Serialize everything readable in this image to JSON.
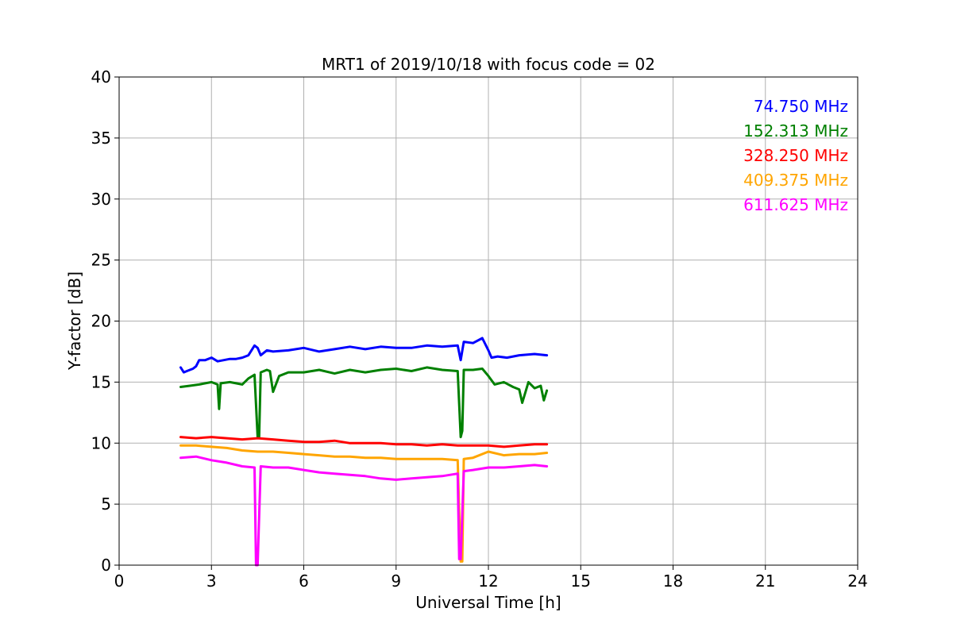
{
  "chart_data": {
    "type": "line",
    "title": "MRT1 of 2019/10/18 with focus code = 02",
    "xlabel": "Universal Time [h]",
    "ylabel": "Y-factor [dB]",
    "xlim": [
      0,
      24
    ],
    "ylim": [
      0,
      40
    ],
    "xticks": [
      0,
      3,
      6,
      9,
      12,
      15,
      18,
      21,
      24
    ],
    "yticks": [
      0,
      5,
      10,
      15,
      20,
      25,
      30,
      35,
      40
    ],
    "grid": true,
    "legend_position": "top-right",
    "series": [
      {
        "name": "74.750 MHz",
        "color": "#0000ff",
        "x": [
          2.0,
          2.1,
          2.2,
          2.3,
          2.4,
          2.5,
          2.6,
          2.8,
          3.0,
          3.2,
          3.4,
          3.6,
          3.8,
          4.0,
          4.2,
          4.4,
          4.5,
          4.6,
          4.8,
          5.0,
          5.5,
          6.0,
          6.5,
          7.0,
          7.5,
          8.0,
          8.5,
          9.0,
          9.5,
          10.0,
          10.5,
          11.0,
          11.1,
          11.2,
          11.5,
          11.8,
          12.0,
          12.1,
          12.3,
          12.6,
          13.0,
          13.5,
          13.9
        ],
        "y": [
          16.2,
          15.8,
          15.9,
          16.0,
          16.1,
          16.3,
          16.8,
          16.8,
          17.0,
          16.7,
          16.8,
          16.9,
          16.9,
          17.0,
          17.2,
          18.0,
          17.8,
          17.2,
          17.6,
          17.5,
          17.6,
          17.8,
          17.5,
          17.7,
          17.9,
          17.7,
          17.9,
          17.8,
          17.8,
          18.0,
          17.9,
          18.0,
          16.8,
          18.3,
          18.2,
          18.6,
          17.6,
          17.0,
          17.1,
          17.0,
          17.2,
          17.3,
          17.2
        ]
      },
      {
        "name": "152.313 MHz",
        "color": "#008000",
        "x": [
          2.0,
          2.3,
          2.6,
          3.0,
          3.2,
          3.25,
          3.3,
          3.6,
          4.0,
          4.2,
          4.4,
          4.5,
          4.55,
          4.6,
          4.8,
          4.9,
          5.0,
          5.2,
          5.5,
          6.0,
          6.5,
          7.0,
          7.5,
          8.0,
          8.5,
          9.0,
          9.5,
          10.0,
          10.5,
          11.0,
          11.1,
          11.15,
          11.2,
          11.5,
          11.8,
          12.0,
          12.2,
          12.5,
          12.8,
          13.0,
          13.1,
          13.3,
          13.5,
          13.7,
          13.8,
          13.9
        ],
        "y": [
          14.6,
          14.7,
          14.8,
          15.0,
          14.8,
          12.8,
          14.9,
          15.0,
          14.8,
          15.3,
          15.6,
          10.5,
          10.5,
          15.8,
          16.0,
          15.9,
          14.2,
          15.5,
          15.8,
          15.8,
          16.0,
          15.7,
          16.0,
          15.8,
          16.0,
          16.1,
          15.9,
          16.2,
          16.0,
          15.9,
          10.5,
          11.0,
          16.0,
          16.0,
          16.1,
          15.5,
          14.8,
          15.0,
          14.6,
          14.4,
          13.3,
          15.0,
          14.5,
          14.7,
          13.5,
          14.3
        ]
      },
      {
        "name": "328.250 MHz",
        "color": "#ff0000",
        "x": [
          2.0,
          2.5,
          3.0,
          3.5,
          4.0,
          4.5,
          5.0,
          5.5,
          6.0,
          6.5,
          7.0,
          7.5,
          8.0,
          8.5,
          9.0,
          9.5,
          10.0,
          10.5,
          11.0,
          11.5,
          12.0,
          12.5,
          13.0,
          13.5,
          13.9
        ],
        "y": [
          10.5,
          10.4,
          10.5,
          10.4,
          10.3,
          10.4,
          10.3,
          10.2,
          10.1,
          10.1,
          10.2,
          10.0,
          10.0,
          10.0,
          9.9,
          9.9,
          9.8,
          9.9,
          9.8,
          9.8,
          9.8,
          9.7,
          9.8,
          9.9,
          9.9
        ]
      },
      {
        "name": "409.375 MHz",
        "color": "#ffa500",
        "x": [
          2.0,
          2.5,
          3.0,
          3.5,
          4.0,
          4.5,
          5.0,
          5.5,
          6.0,
          6.5,
          7.0,
          7.5,
          8.0,
          8.5,
          9.0,
          9.5,
          10.0,
          10.5,
          11.0,
          11.1,
          11.15,
          11.2,
          11.5,
          12.0,
          12.5,
          13.0,
          13.5,
          13.9
        ],
        "y": [
          9.8,
          9.8,
          9.7,
          9.6,
          9.4,
          9.3,
          9.3,
          9.2,
          9.1,
          9.0,
          8.9,
          8.9,
          8.8,
          8.8,
          8.7,
          8.7,
          8.7,
          8.7,
          8.6,
          0.3,
          0.3,
          8.7,
          8.8,
          9.3,
          9.0,
          9.1,
          9.1,
          9.2
        ]
      },
      {
        "name": "611.625 MHz",
        "color": "#ff00ff",
        "x": [
          2.0,
          2.5,
          3.0,
          3.5,
          4.0,
          4.4,
          4.45,
          4.5,
          4.6,
          5.0,
          5.5,
          6.0,
          6.5,
          7.0,
          7.5,
          8.0,
          8.5,
          9.0,
          9.5,
          10.0,
          10.5,
          11.0,
          11.05,
          11.1,
          11.2,
          11.5,
          12.0,
          12.5,
          13.0,
          13.5,
          13.9
        ],
        "y": [
          8.8,
          8.9,
          8.6,
          8.4,
          8.1,
          8.0,
          0.0,
          0.0,
          8.1,
          8.0,
          8.0,
          7.8,
          7.6,
          7.5,
          7.4,
          7.3,
          7.1,
          7.0,
          7.1,
          7.2,
          7.3,
          7.5,
          0.5,
          0.5,
          7.7,
          7.8,
          8.0,
          8.0,
          8.1,
          8.2,
          8.1
        ]
      }
    ]
  }
}
